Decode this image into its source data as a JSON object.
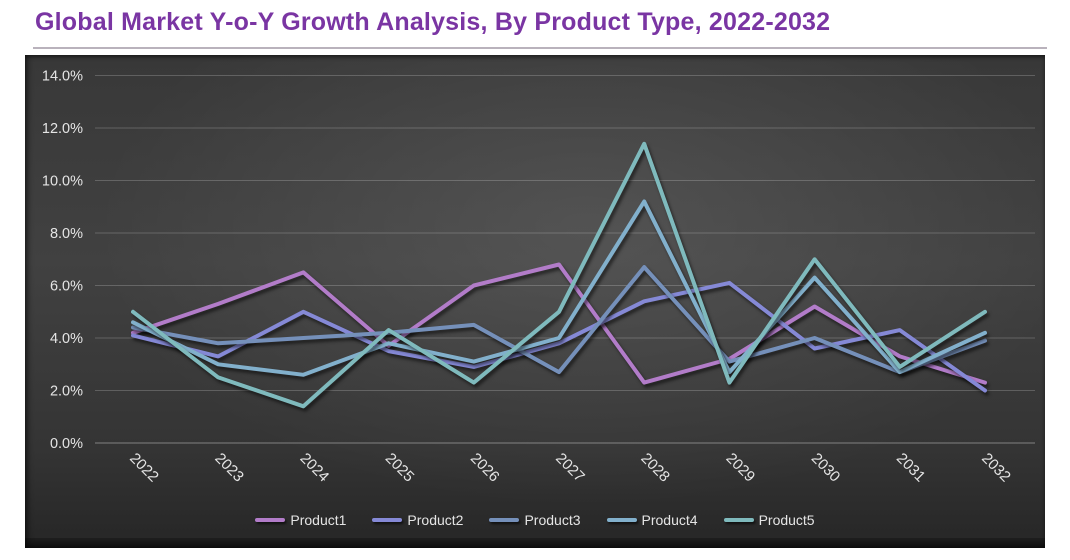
{
  "title": "Global Market Y-o-Y Growth Analysis, By Product Type, 2022-2032",
  "colors": {
    "title_text": "#7a35a3",
    "axis_text": "#e5e5e5",
    "chart_background": "#3a3a3a",
    "gridline": "#9a9a9a"
  },
  "chart_data": {
    "type": "line",
    "title": "Global Market Y-o-Y Growth Analysis, By Product Type, 2022-2032",
    "xlabel": "",
    "ylabel": "",
    "ylim": [
      0,
      14
    ],
    "grid": true,
    "legend_position": "bottom",
    "yticks": [
      "14.0%",
      "12.0%",
      "10.0%",
      "8.0%",
      "6.0%",
      "4.0%",
      "2.0%",
      "0.0%"
    ],
    "categories": [
      "2022",
      "2023",
      "2024",
      "2025",
      "2026",
      "2027",
      "2028",
      "2029",
      "2030",
      "2031",
      "2032"
    ],
    "series": [
      {
        "name": "Product1",
        "color": "#b27cc9",
        "values": [
          4.2,
          5.3,
          6.5,
          3.7,
          6.0,
          6.8,
          2.3,
          3.2,
          5.2,
          3.3,
          2.3
        ]
      },
      {
        "name": "Product2",
        "color": "#8589d6",
        "values": [
          4.1,
          3.3,
          5.0,
          3.5,
          2.9,
          3.8,
          5.4,
          6.1,
          3.6,
          4.3,
          2.0
        ]
      },
      {
        "name": "Product3",
        "color": "#7590ba",
        "values": [
          4.4,
          3.8,
          4.0,
          4.2,
          4.5,
          2.7,
          6.7,
          3.1,
          4.0,
          2.7,
          3.9
        ]
      },
      {
        "name": "Product4",
        "color": "#82b0cc",
        "values": [
          4.6,
          3.0,
          2.6,
          3.8,
          3.1,
          4.0,
          9.2,
          2.7,
          6.3,
          2.7,
          4.2
        ]
      },
      {
        "name": "Product5",
        "color": "#7fbabd",
        "values": [
          5.0,
          2.5,
          1.4,
          4.3,
          2.3,
          5.0,
          11.4,
          2.3,
          7.0,
          2.9,
          5.0
        ]
      }
    ]
  }
}
